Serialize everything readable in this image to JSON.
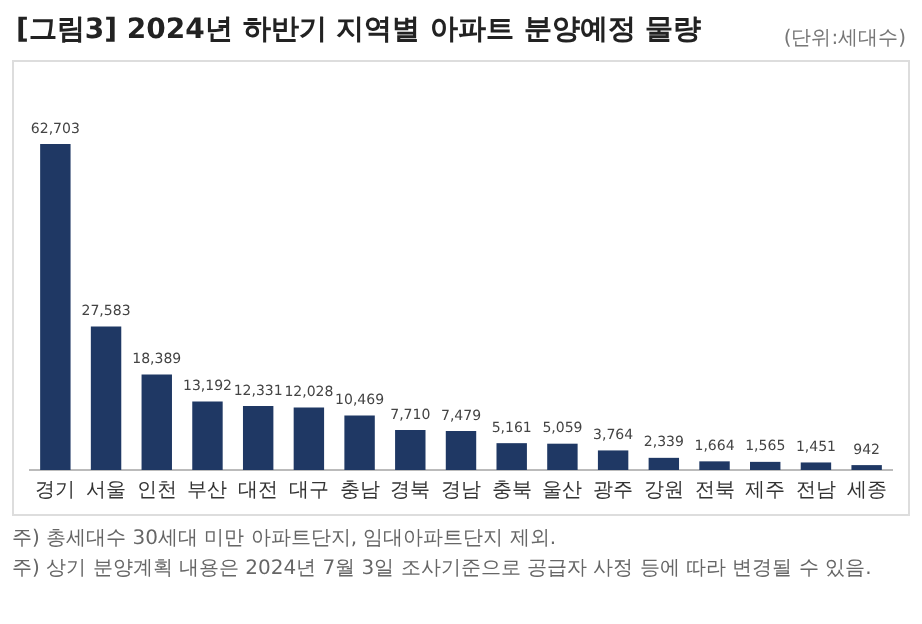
{
  "chart_data": {
    "type": "bar",
    "title": "[그림3] 2024년 하반기 지역별 아파트 분양예정 물량",
    "categories": [
      "경기",
      "서울",
      "인천",
      "부산",
      "대전",
      "대구",
      "충남",
      "경북",
      "경남",
      "충북",
      "울산",
      "광주",
      "강원",
      "전북",
      "제주",
      "전남",
      "세종"
    ],
    "values": [
      62703,
      27583,
      18389,
      13192,
      12331,
      12028,
      10469,
      7710,
      7479,
      5161,
      5059,
      3764,
      2339,
      1664,
      1565,
      1451,
      942
    ],
    "color": "#1f3864",
    "value_labels": [
      "62,703",
      "27,583",
      "18,389",
      "13,192",
      "12,331",
      "12,028",
      "10,469",
      "7,710",
      "7,479",
      "5,161",
      "5,059",
      "3,764",
      "2,339",
      "1,664",
      "1,565",
      "1,451",
      "942"
    ],
    "grid": false,
    "legend": false,
    "tick_labels": "x",
    "annotations": [
      "(단위:세대수)",
      "주) 총세대수 30세대 미만 아파트단지, 임대아파트단지 제외.",
      "주) 상기 분양계획 내용은 2024년 7월 3일 조사기준으로 공급자 사정 등에 따라 변경될 수 있음."
    ]
  }
}
